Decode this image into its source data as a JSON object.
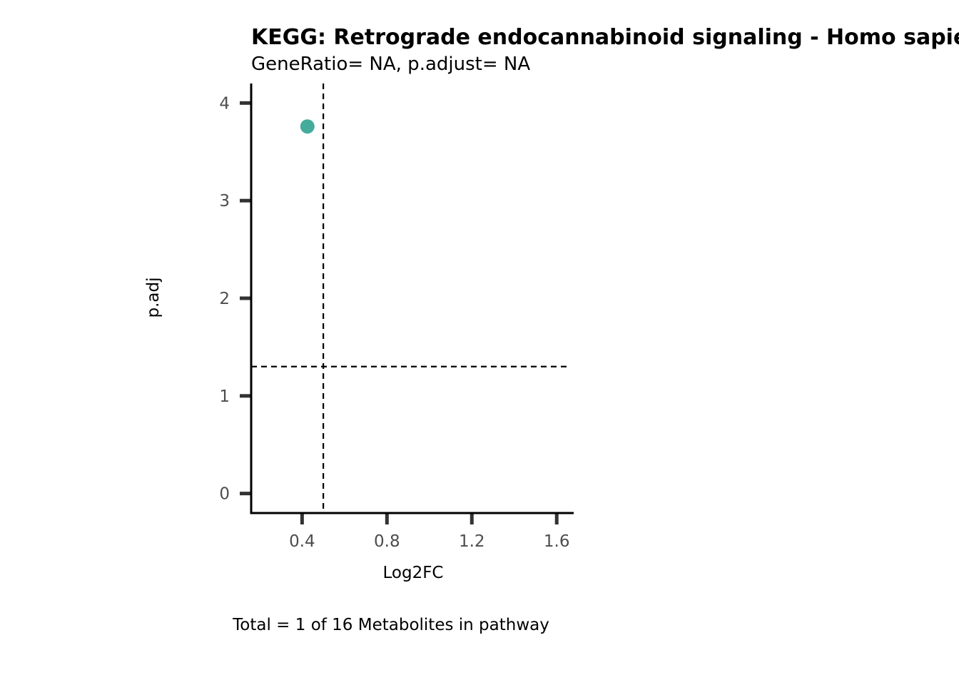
{
  "chart_data": {
    "type": "scatter",
    "title": "KEGG: Retrograde endocannabinoid signaling - Homo sapiens (human)",
    "subtitle": "GeneRatio= NA, p.adjust= NA",
    "xlabel": "Log2FC",
    "ylabel": "p.adj",
    "caption": "Total = 1 of 16 Metabolites in pathway",
    "xlim": [
      0.16,
      1.68
    ],
    "ylim": [
      -0.2,
      4.2
    ],
    "x_ticks": [
      0.4,
      0.8,
      1.2,
      1.6
    ],
    "x_tick_labels": [
      "0.4",
      "0.8",
      "1.2",
      "1.6"
    ],
    "y_ticks": [
      0,
      1,
      2,
      3,
      4
    ],
    "y_tick_labels": [
      "0",
      "1",
      "2",
      "3",
      "4"
    ],
    "points": [
      {
        "x": 0.425,
        "y": 3.76,
        "color": "#45ab9b"
      }
    ],
    "vline": 0.5,
    "hline": 1.3,
    "grid": false,
    "legend": "none"
  }
}
